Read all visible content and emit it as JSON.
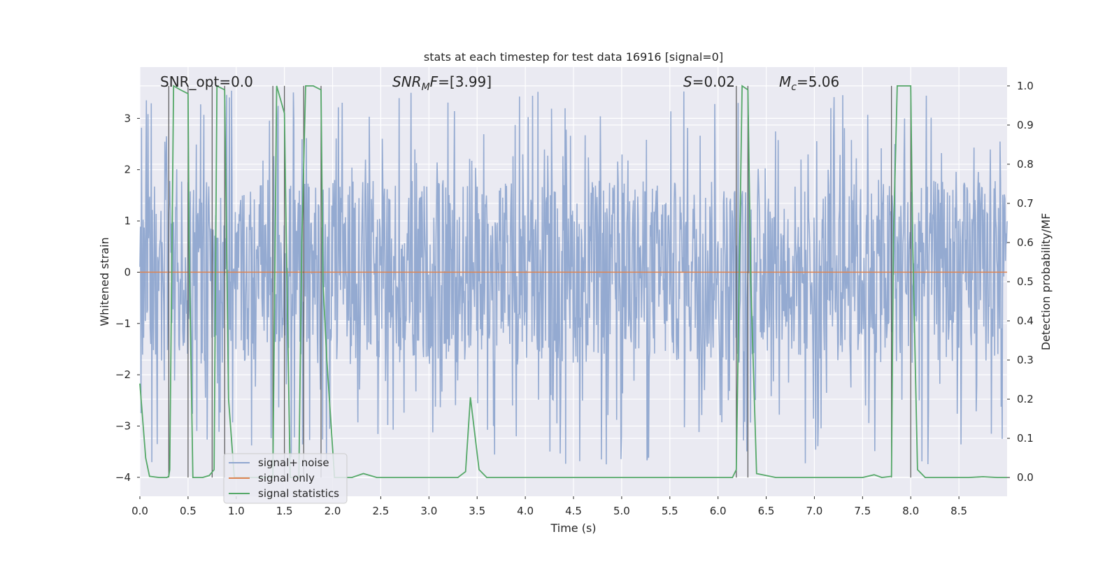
{
  "chart_data": {
    "type": "line",
    "title": "stats at each timestep for test data 16916 [signal=0]",
    "xlabel": "Time (s)",
    "ylabel": "Whitened strain",
    "ylabel_right": "Detection probability/MF",
    "xlim": [
      0,
      9.0
    ],
    "ylim": [
      -4.37,
      4.0
    ],
    "ylim_right": [
      -0.048,
      1.048
    ],
    "x_ticks": [
      0.0,
      0.5,
      1.0,
      1.5,
      2.0,
      2.5,
      3.0,
      3.5,
      4.0,
      4.5,
      5.0,
      5.5,
      6.0,
      6.5,
      7.0,
      7.5,
      8.0,
      8.5
    ],
    "x_tick_labels": [
      "0.0",
      "0.5",
      "1.0",
      "1.5",
      "2.0",
      "2.5",
      "3.0",
      "3.5",
      "4.0",
      "4.5",
      "5.0",
      "5.5",
      "6.0",
      "6.5",
      "7.0",
      "7.5",
      "8.0",
      "8.5"
    ],
    "y_ticks": [
      -4,
      -3,
      -2,
      -1,
      0,
      1,
      2,
      3
    ],
    "y_tick_labels": [
      "−4",
      "−3",
      "−2",
      "−1",
      "0",
      "1",
      "2",
      "3"
    ],
    "y_right_ticks": [
      0.0,
      0.1,
      0.2,
      0.3,
      0.4,
      0.5,
      0.6,
      0.7,
      0.8,
      0.9,
      1.0
    ],
    "y_right_tick_labels": [
      "0.0",
      "0.1",
      "0.2",
      "0.3",
      "0.4",
      "0.5",
      "0.6",
      "0.7",
      "0.8",
      "0.9",
      "1.0"
    ],
    "grid": true,
    "legend_position": "lower-left",
    "annotations": [
      {
        "text": "SNR_opt=0.0"
      },
      {
        "text": "SNR",
        "sub": "M",
        "tail": "F=[3.99]"
      },
      {
        "text": "S",
        "tail": "=0.02"
      },
      {
        "text": "M",
        "sub": "c",
        "tail": "=5.06"
      }
    ],
    "series": [
      {
        "name": "signal+ noise",
        "axis": "left",
        "color": "#8fa6cf",
        "style": "noise",
        "amplitude_range": [
          -1.8,
          1.8
        ],
        "peak_range": [
          -3.8,
          3.55
        ]
      },
      {
        "name": "signal only",
        "axis": "left",
        "color": "#dd8452",
        "x": [
          0.0,
          9.0
        ],
        "y": [
          0.0,
          0.0
        ]
      },
      {
        "name": "signal statistics",
        "axis": "right",
        "color": "#55a868",
        "x": [
          0.0,
          0.06,
          0.1,
          0.2,
          0.28,
          0.3,
          0.31,
          0.35,
          0.42,
          0.5,
          0.51,
          0.55,
          0.65,
          0.72,
          0.77,
          0.8,
          0.88,
          0.92,
          0.98,
          1.38,
          1.42,
          1.5,
          1.52,
          1.56,
          1.65,
          1.68,
          1.72,
          1.8,
          1.88,
          1.9,
          1.94,
          2.02,
          2.2,
          2.32,
          2.46,
          2.6,
          3.3,
          3.38,
          3.43,
          3.52,
          3.6,
          5.8,
          6.15,
          6.19,
          6.25,
          6.31,
          6.34,
          6.4,
          6.6,
          7.5,
          7.62,
          7.7,
          7.8,
          7.82,
          7.86,
          8.0,
          8.02,
          8.07,
          8.15,
          8.6,
          8.75,
          8.9,
          9.0
        ],
        "y": [
          0.24,
          0.05,
          0.003,
          0.0,
          0.0,
          0.003,
          0.02,
          1.0,
          0.99,
          0.98,
          0.6,
          0.0,
          0.0,
          0.005,
          0.02,
          1.0,
          0.99,
          0.2,
          0.0,
          0.0,
          1.0,
          0.93,
          0.6,
          0.0,
          0.0,
          0.6,
          1.0,
          1.0,
          0.99,
          0.5,
          0.3,
          0.0,
          0.0,
          0.01,
          0.0,
          0.0,
          0.0,
          0.015,
          0.205,
          0.02,
          0.0,
          0.0,
          0.0,
          0.02,
          1.0,
          0.99,
          0.5,
          0.01,
          0.0,
          0.0,
          0.007,
          0.0,
          0.003,
          0.6,
          1.0,
          1.0,
          0.6,
          0.02,
          0.0,
          0.0,
          0.002,
          0.0,
          0.0
        ]
      }
    ],
    "vertical_lines": [
      0.3,
      0.5,
      0.75,
      0.88,
      1.38,
      1.5,
      1.7,
      1.88,
      6.19,
      6.31,
      7.8,
      8.0
    ]
  }
}
